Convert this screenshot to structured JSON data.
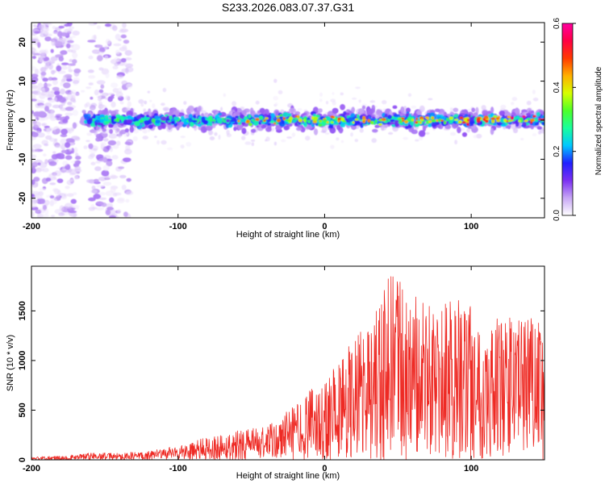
{
  "title": "S233.2026.083.07.37.G31",
  "chart_data": [
    {
      "type": "heatmap",
      "title": "S233.2026.083.07.37.G31",
      "xlabel": "Height of straight line (km)",
      "ylabel": "Frequency (Hz)",
      "xlim": [
        -200,
        150
      ],
      "ylim": [
        -25,
        25
      ],
      "xticks": [
        -200,
        -100,
        0,
        100
      ],
      "yticks": [
        -20,
        -10,
        0,
        10,
        20
      ],
      "colorbar": {
        "label": "Normalized spectral amplitude",
        "range": [
          0.0,
          0.6
        ],
        "ticks": [
          0.0,
          0.2,
          0.4,
          0.6
        ],
        "colors": [
          "#ffffff",
          "#c7a6f5",
          "#7b2ff2",
          "#2020ff",
          "#00c8ff",
          "#19ff9c",
          "#4cff29",
          "#d6ff00",
          "#ffb000",
          "#ff3a00",
          "#ff0044",
          "#ff00a0"
        ]
      },
      "band": {
        "center_freq": 0,
        "half_width": 4,
        "start_km": -165
      },
      "scatter_regions": [
        {
          "from": -200,
          "to": -168,
          "density": "high",
          "freq_range": [
            -25,
            25
          ]
        },
        {
          "from": -160,
          "to": -133,
          "density": "medium",
          "freq_range": [
            -25,
            25
          ]
        }
      ]
    },
    {
      "type": "line",
      "title": "",
      "xlabel": "Height of straight line (km)",
      "ylabel": "SNR (10 * v/v)",
      "xlim": [
        -200,
        150
      ],
      "ylim": [
        0,
        1950
      ],
      "xticks": [
        -200,
        -100,
        0,
        100
      ],
      "yticks": [
        0,
        500,
        1000,
        1500
      ],
      "color": "#ee2a24",
      "envelope": {
        "x": [
          -200,
          -180,
          -160,
          -140,
          -120,
          -100,
          -80,
          -60,
          -40,
          -25,
          -10,
          0,
          10,
          20,
          35,
          45,
          60,
          75,
          90,
          110,
          130,
          150
        ],
        "max": [
          30,
          40,
          70,
          70,
          90,
          140,
          230,
          300,
          330,
          500,
          700,
          850,
          1050,
          1250,
          1500,
          1900,
          1700,
          1500,
          1650,
          1450,
          1450,
          1400
        ]
      }
    }
  ]
}
